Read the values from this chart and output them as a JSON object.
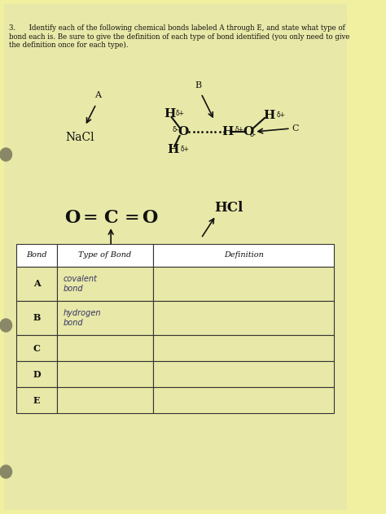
{
  "bg_color": "#f0f0a0",
  "paper_color": "#e8e8a8",
  "text_color": "#111111",
  "question_text": "3.      Identify each of the following chemical bonds labeled A through E, and state what type of\nbond each is. Be sure to give the definition of each type of bond identified (you only need to give\nthe definition once for each type).",
  "table_bonds": [
    "A",
    "B",
    "C",
    "D",
    "E"
  ],
  "table_types": [
    "covalent\nbond",
    "hydrogen\nbond",
    "",
    "",
    ""
  ],
  "table_defs": [
    "",
    "",
    "",
    "",
    ""
  ]
}
